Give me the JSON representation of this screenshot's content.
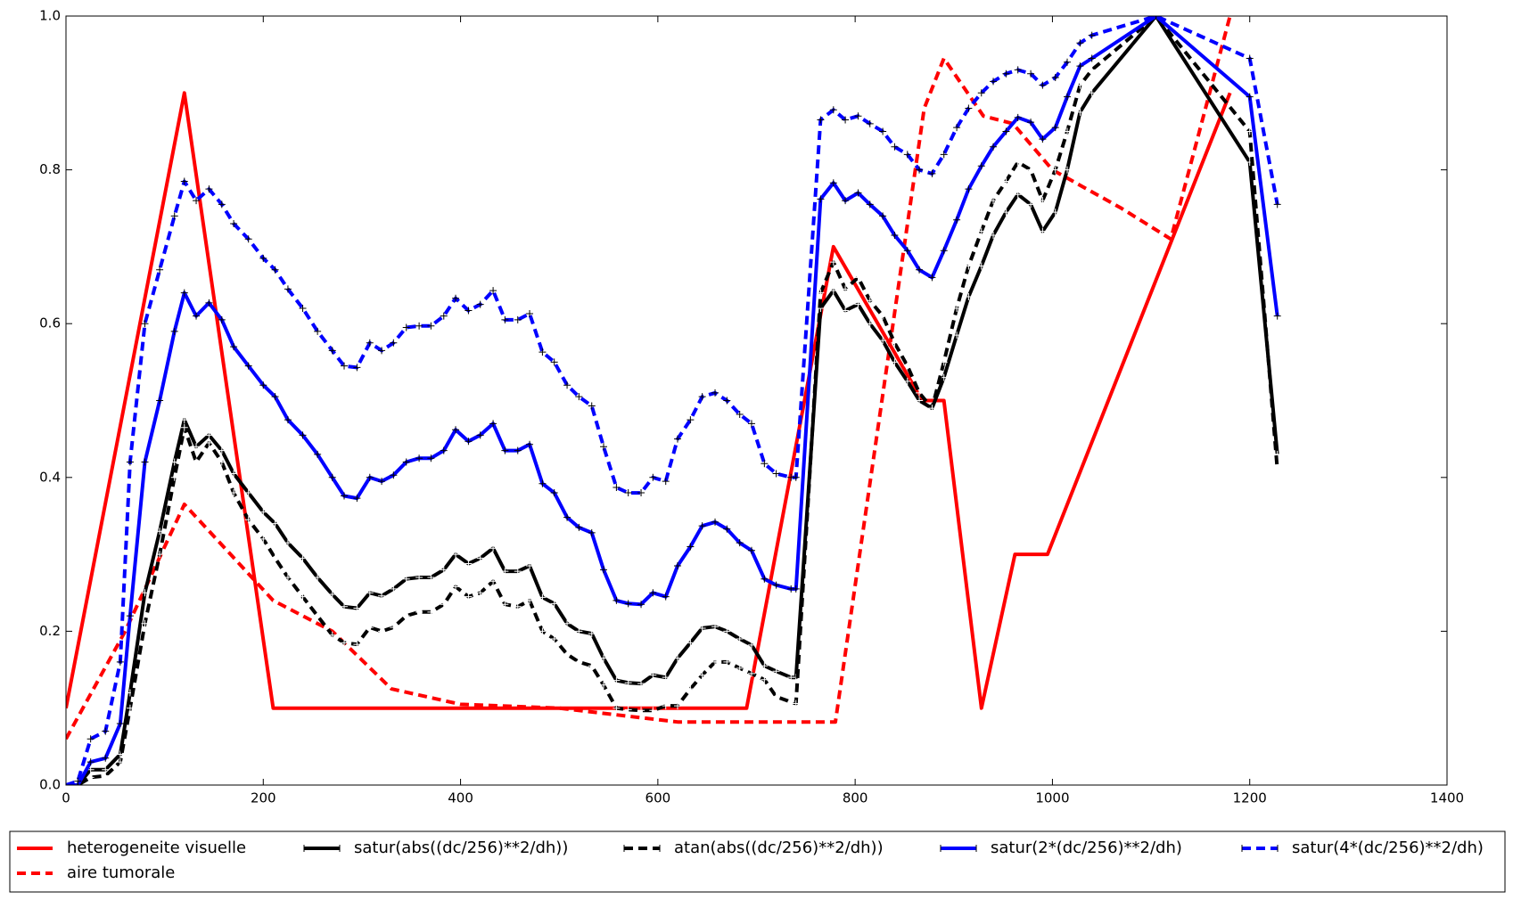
{
  "chart_data": {
    "type": "line",
    "xlim": [
      0,
      1400
    ],
    "xticks": [
      0,
      200,
      400,
      600,
      800,
      1000,
      1200,
      1400
    ],
    "ylim": [
      0,
      1
    ],
    "yticks": [
      {
        "value": 0,
        "label": "0.0"
      },
      {
        "value": 0.2,
        "label": "0.2"
      },
      {
        "value": 0.4,
        "label": "0.4"
      },
      {
        "value": 0.6,
        "label": "0.6"
      },
      {
        "value": 0.8,
        "label": "0.8"
      },
      {
        "value": 1,
        "label": "1.0"
      }
    ],
    "series": [
      {
        "name": "heterogeneite visuelle",
        "color": "#ff0000",
        "style": "solid",
        "marker": false,
        "x": [
          0,
          120,
          210,
          690,
          778,
          868,
          890,
          928,
          962,
          995,
          1180
        ],
        "values": [
          0.1,
          0.9,
          0.1,
          0.1,
          0.7,
          0.5,
          0.5,
          0.1,
          0.3,
          0.3,
          0.9
        ]
      },
      {
        "name": "aire tumorale",
        "color": "#ff0000",
        "style": "dashed",
        "marker": false,
        "x": [
          0,
          60,
          120,
          210,
          270,
          330,
          400,
          500,
          620,
          780,
          870,
          890,
          930,
          960,
          1000,
          1070,
          1120,
          1180
        ],
        "values": [
          0.06,
          0.2,
          0.365,
          0.24,
          0.2,
          0.125,
          0.105,
          0.1,
          0.082,
          0.082,
          0.88,
          0.945,
          0.87,
          0.86,
          0.8,
          0.75,
          0.71,
          1.0
        ]
      },
      {
        "name": "satur(abs((dc/256)**2/dh))",
        "color": "#000000",
        "style": "solid",
        "marker": true,
        "x": [
          0,
          12,
          25,
          40,
          55,
          65,
          80,
          95,
          110,
          120,
          132,
          145,
          158,
          170,
          185,
          200,
          212,
          225,
          240,
          255,
          270,
          282,
          295,
          308,
          320,
          332,
          345,
          358,
          370,
          383,
          395,
          408,
          420,
          433,
          445,
          458,
          470,
          483,
          495,
          508,
          520,
          533,
          545,
          558,
          570,
          583,
          595,
          608,
          620,
          633,
          645,
          658,
          670,
          683,
          695,
          708,
          720,
          735,
          740,
          765,
          778,
          790,
          803,
          815,
          828,
          840,
          853,
          865,
          878,
          890,
          903,
          915,
          928,
          940,
          953,
          965,
          978,
          990,
          1003,
          1015,
          1028,
          1040,
          1105,
          1200,
          1228
        ],
        "values": [
          0,
          0,
          0.02,
          0.02,
          0.04,
          0.12,
          0.25,
          0.33,
          0.42,
          0.475,
          0.44,
          0.455,
          0.435,
          0.405,
          0.38,
          0.355,
          0.34,
          0.315,
          0.295,
          0.27,
          0.248,
          0.232,
          0.23,
          0.25,
          0.246,
          0.255,
          0.268,
          0.27,
          0.27,
          0.28,
          0.3,
          0.288,
          0.295,
          0.308,
          0.278,
          0.278,
          0.285,
          0.244,
          0.236,
          0.21,
          0.2,
          0.197,
          0.165,
          0.136,
          0.133,
          0.132,
          0.143,
          0.14,
          0.165,
          0.185,
          0.204,
          0.206,
          0.2,
          0.19,
          0.182,
          0.155,
          0.148,
          0.14,
          0.14,
          0.62,
          0.643,
          0.617,
          0.625,
          0.6,
          0.578,
          0.55,
          0.525,
          0.5,
          0.49,
          0.53,
          0.585,
          0.635,
          0.675,
          0.715,
          0.745,
          0.768,
          0.755,
          0.72,
          0.745,
          0.8,
          0.875,
          0.9,
          1.0,
          0.81,
          0.43
        ]
      },
      {
        "name": "atan(abs((dc/256)**2/dh))",
        "color": "#000000",
        "style": "dashed",
        "marker": true,
        "x": [
          0,
          12,
          25,
          40,
          55,
          65,
          80,
          95,
          110,
          120,
          132,
          145,
          158,
          170,
          185,
          200,
          212,
          225,
          240,
          255,
          270,
          282,
          295,
          308,
          320,
          332,
          345,
          358,
          370,
          383,
          395,
          408,
          420,
          433,
          445,
          458,
          470,
          483,
          495,
          508,
          520,
          533,
          545,
          558,
          570,
          583,
          595,
          608,
          620,
          633,
          645,
          658,
          670,
          683,
          695,
          708,
          720,
          735,
          740,
          765,
          778,
          790,
          803,
          815,
          828,
          840,
          853,
          865,
          878,
          890,
          903,
          915,
          928,
          940,
          953,
          965,
          978,
          990,
          1003,
          1015,
          1028,
          1040,
          1105,
          1200,
          1228
        ],
        "values": [
          0,
          0,
          0.01,
          0.012,
          0.03,
          0.1,
          0.21,
          0.3,
          0.4,
          0.465,
          0.42,
          0.445,
          0.42,
          0.38,
          0.345,
          0.32,
          0.295,
          0.27,
          0.245,
          0.22,
          0.195,
          0.185,
          0.183,
          0.205,
          0.2,
          0.205,
          0.22,
          0.225,
          0.225,
          0.235,
          0.258,
          0.245,
          0.25,
          0.265,
          0.235,
          0.232,
          0.24,
          0.2,
          0.19,
          0.17,
          0.16,
          0.155,
          0.13,
          0.1,
          0.098,
          0.097,
          0.097,
          0.103,
          0.103,
          0.125,
          0.143,
          0.16,
          0.16,
          0.152,
          0.145,
          0.137,
          0.115,
          0.108,
          0.106,
          0.64,
          0.68,
          0.645,
          0.66,
          0.63,
          0.61,
          0.575,
          0.545,
          0.51,
          0.49,
          0.55,
          0.62,
          0.675,
          0.72,
          0.76,
          0.785,
          0.81,
          0.8,
          0.76,
          0.8,
          0.85,
          0.91,
          0.93,
          1.0,
          0.85,
          0.41
        ]
      },
      {
        "name": "satur(2*(dc/256)**2/dh)",
        "color": "#0000ff",
        "style": "solid",
        "marker": true,
        "x": [
          0,
          12,
          25,
          40,
          55,
          65,
          80,
          95,
          110,
          120,
          132,
          145,
          158,
          170,
          185,
          200,
          212,
          225,
          240,
          255,
          270,
          282,
          295,
          308,
          320,
          332,
          345,
          358,
          370,
          383,
          395,
          408,
          420,
          433,
          445,
          458,
          470,
          483,
          495,
          508,
          520,
          533,
          545,
          558,
          570,
          583,
          595,
          608,
          620,
          633,
          645,
          658,
          670,
          683,
          695,
          708,
          720,
          735,
          740,
          765,
          778,
          790,
          803,
          815,
          828,
          840,
          853,
          865,
          878,
          890,
          903,
          915,
          928,
          940,
          953,
          965,
          978,
          990,
          1003,
          1015,
          1028,
          1040,
          1105,
          1200,
          1228
        ],
        "values": [
          0,
          0,
          0.03,
          0.035,
          0.08,
          0.22,
          0.42,
          0.5,
          0.59,
          0.64,
          0.61,
          0.627,
          0.605,
          0.57,
          0.545,
          0.52,
          0.505,
          0.475,
          0.455,
          0.43,
          0.4,
          0.376,
          0.373,
          0.4,
          0.395,
          0.403,
          0.42,
          0.425,
          0.425,
          0.435,
          0.462,
          0.447,
          0.455,
          0.47,
          0.435,
          0.435,
          0.443,
          0.392,
          0.38,
          0.348,
          0.335,
          0.328,
          0.28,
          0.24,
          0.236,
          0.235,
          0.25,
          0.245,
          0.285,
          0.31,
          0.337,
          0.342,
          0.333,
          0.315,
          0.305,
          0.268,
          0.26,
          0.255,
          0.255,
          0.762,
          0.783,
          0.76,
          0.77,
          0.755,
          0.74,
          0.715,
          0.695,
          0.67,
          0.66,
          0.695,
          0.735,
          0.775,
          0.805,
          0.83,
          0.85,
          0.868,
          0.862,
          0.84,
          0.855,
          0.895,
          0.935,
          0.945,
          1.0,
          0.895,
          0.61
        ]
      },
      {
        "name": "satur(4*(dc/256)**2/dh)",
        "color": "#0000ff",
        "style": "dashed",
        "marker": true,
        "x": [
          0,
          12,
          25,
          40,
          55,
          65,
          80,
          95,
          110,
          120,
          132,
          145,
          158,
          170,
          185,
          200,
          212,
          225,
          240,
          255,
          270,
          282,
          295,
          308,
          320,
          332,
          345,
          358,
          370,
          383,
          395,
          408,
          420,
          433,
          445,
          458,
          470,
          483,
          495,
          508,
          520,
          533,
          545,
          558,
          570,
          583,
          595,
          608,
          620,
          633,
          645,
          658,
          670,
          683,
          695,
          708,
          720,
          735,
          740,
          765,
          778,
          790,
          803,
          815,
          828,
          840,
          853,
          865,
          878,
          890,
          903,
          915,
          928,
          940,
          953,
          965,
          978,
          990,
          1003,
          1015,
          1028,
          1040,
          1105,
          1200,
          1228
        ],
        "values": [
          0,
          0.005,
          0.06,
          0.07,
          0.16,
          0.42,
          0.6,
          0.67,
          0.74,
          0.785,
          0.76,
          0.775,
          0.755,
          0.73,
          0.71,
          0.685,
          0.67,
          0.645,
          0.62,
          0.59,
          0.565,
          0.545,
          0.543,
          0.575,
          0.565,
          0.575,
          0.595,
          0.597,
          0.597,
          0.61,
          0.633,
          0.617,
          0.625,
          0.643,
          0.605,
          0.605,
          0.613,
          0.563,
          0.55,
          0.52,
          0.505,
          0.493,
          0.44,
          0.387,
          0.38,
          0.38,
          0.4,
          0.395,
          0.45,
          0.475,
          0.505,
          0.51,
          0.5,
          0.482,
          0.47,
          0.418,
          0.405,
          0.4,
          0.4,
          0.865,
          0.878,
          0.865,
          0.87,
          0.86,
          0.85,
          0.83,
          0.82,
          0.8,
          0.795,
          0.82,
          0.855,
          0.88,
          0.9,
          0.915,
          0.925,
          0.93,
          0.925,
          0.91,
          0.92,
          0.94,
          0.965,
          0.975,
          1.0,
          0.945,
          0.755
        ]
      }
    ]
  }
}
